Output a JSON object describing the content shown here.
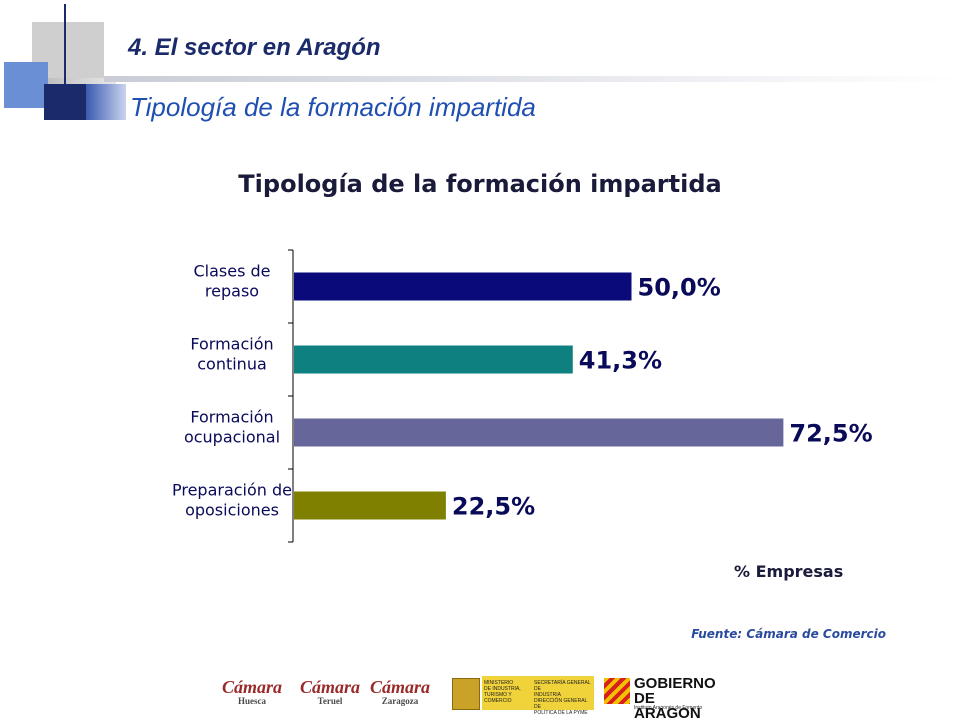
{
  "header": {
    "section_title": "4. El sector en Aragón",
    "section_subtitle": "Tipología de la formación impartida"
  },
  "chart_data": {
    "type": "bar",
    "orientation": "horizontal",
    "title": "Tipología de la formación impartida",
    "xlabel": "% Empresas",
    "ylabel": "",
    "xlim": [
      0,
      80
    ],
    "grid": false,
    "categories": [
      [
        "Clases de",
        "repaso"
      ],
      [
        "Formación",
        "continua"
      ],
      [
        "Formación",
        "ocupacional"
      ],
      [
        "Preparación de",
        "oposiciones"
      ]
    ],
    "values": [
      50.0,
      41.3,
      72.5,
      22.5
    ],
    "value_labels": [
      "50,0%",
      "41,3%",
      "72,5%",
      "22,5%"
    ],
    "colors": [
      "#0a0a7a",
      "#0f8080",
      "#66669a",
      "#808000"
    ]
  },
  "source": "Fuente: Cámara de Comercio",
  "logos": {
    "camara_word": "Cámara",
    "camara_cities": [
      "Huesca",
      "Teruel",
      "Zaragoza"
    ],
    "ministerio_lines": [
      "MINISTERIO",
      "DE INDUSTRIA,",
      "TURISMO Y",
      "COMERCIO"
    ],
    "secretaria_lines": [
      "SECRETARÍA GENERAL DE",
      "INDUSTRIA",
      "DIRECCIÓN GENERAL DE",
      "POLÍTICA DE LA PYME"
    ],
    "gobierno_lines": [
      "GOBIERNO",
      "DE ARAGON"
    ],
    "gobierno_sub": "Instituto Aragonés de Fomento"
  }
}
